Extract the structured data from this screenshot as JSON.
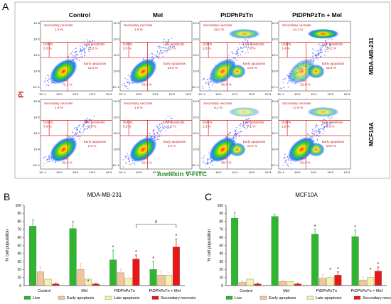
{
  "panels": {
    "a": "A",
    "b": "B",
    "c": "C"
  },
  "flow": {
    "columns": [
      "Control",
      "Mel",
      "PtDPhPzTn",
      "PtDPhPzTn + Mel"
    ],
    "rows": [
      "MDA-MB-231",
      "MCF10A"
    ],
    "xlabel": "Annexin V-FITC",
    "ylabel": "PI",
    "ticks": [
      "10^-1",
      "10^0",
      "10^1",
      "10^2",
      "10^3"
    ],
    "quadrant_labels": [
      "Secondary necrosis",
      "Debris",
      "Late apoptosis",
      "Early apoptosis",
      "Live"
    ],
    "plots": [
      {
        "sec": "1.8 %",
        "deb": "0.3 %",
        "late": "11.0 %",
        "early": "11.0 %",
        "live": "72.1 %"
      },
      {
        "sec": "1.6 %",
        "deb": "0.5 %",
        "late": "7.1 %",
        "early": "24.6 %",
        "live": "63.9 %"
      },
      {
        "sec": "25.0 %",
        "deb": "2.6 %",
        "late": "7.0 %",
        "early": "19.5 %",
        "live": "50.8 %"
      },
      {
        "sec": "44.3 %",
        "deb": "3.4 %",
        "late": "14.2 %",
        "early": "15.6 %",
        "live": "22.0 %"
      },
      {
        "sec": "1.8 %",
        "deb": "0.6 %",
        "late": "2.3 %",
        "early": "2.5 %",
        "live": "92.6 %"
      },
      {
        "sec": "1.6 %",
        "deb": "0.5 %",
        "late": "2.2 %",
        "early": "4.0 %",
        "live": "92.2 %"
      },
      {
        "sec": "8.1 %",
        "deb": "1.3 %",
        "late": "7.1 %",
        "early": "14.2 %",
        "live": "69.7 %"
      },
      {
        "sec": "17.8 %",
        "deb": "1.8 %",
        "late": "8.6 %",
        "early": "10.9 %",
        "live": "63.9 %"
      }
    ]
  },
  "chart_data": [
    {
      "type": "bar",
      "title": "MDA-MB-231",
      "ylabel": "% cell population",
      "ylim": [
        0,
        100
      ],
      "yticks": [
        "0",
        "10",
        "20",
        "30",
        "40",
        "50",
        "60",
        "70",
        "80",
        "90",
        "100"
      ],
      "categories": [
        "Control",
        "Mel",
        "PtDPhPzTn",
        "PtDPhPzTn + Mel"
      ],
      "series": [
        {
          "name": "Live",
          "color": "#2fb52f",
          "values": [
            74,
            71,
            32,
            20
          ],
          "errors": [
            8,
            9,
            12,
            10
          ]
        },
        {
          "name": "Early apoptosis",
          "color": "#f2c49a",
          "values": [
            17,
            20,
            16,
            13
          ],
          "errors": [
            6,
            8,
            5,
            5
          ]
        },
        {
          "name": "Late apoptosis",
          "color": "#f7f0a8",
          "values": [
            8,
            8,
            9,
            13
          ],
          "errors": [
            4,
            4,
            3,
            3
          ]
        },
        {
          "name": "Secondary necrosis",
          "color": "#e81616",
          "values": [
            2,
            2,
            33,
            48
          ],
          "errors": [
            1,
            1,
            5,
            10
          ]
        }
      ],
      "stars": [
        "*",
        "*",
        "*",
        "*",
        "*"
      ],
      "bracket": "#"
    },
    {
      "type": "bar",
      "title": "MCF10A",
      "ylabel": "% cell population",
      "ylim": [
        0,
        100
      ],
      "yticks": [
        "0",
        "10",
        "20",
        "30",
        "40",
        "50",
        "60",
        "70",
        "80",
        "90",
        "100"
      ],
      "categories": [
        "Control",
        "Mel",
        "PtDPhPzTn",
        "PtDPhPzTn + Mel"
      ],
      "series": [
        {
          "name": "Live",
          "color": "#2fb52f",
          "values": [
            84,
            86,
            64,
            61
          ],
          "errors": [
            7,
            3,
            6,
            8
          ]
        },
        {
          "name": "Early apoptosis",
          "color": "#f2c49a",
          "values": [
            4,
            5,
            9,
            7
          ],
          "errors": [
            2,
            2,
            5,
            4
          ]
        },
        {
          "name": "Late apoptosis",
          "color": "#f7f0a8",
          "values": [
            8,
            5,
            10,
            10
          ],
          "errors": [
            8,
            3,
            6,
            6
          ]
        },
        {
          "name": "Secondary necrosis",
          "color": "#e81616",
          "values": [
            2,
            2,
            13,
            18
          ],
          "errors": [
            1,
            1,
            4,
            5
          ]
        }
      ],
      "stars": [
        "*",
        "*",
        "*",
        "*",
        "*",
        "*"
      ]
    }
  ],
  "legend": [
    "Live",
    "Early apoptosis",
    "Late apoptosis",
    "Secondary necrosis"
  ]
}
